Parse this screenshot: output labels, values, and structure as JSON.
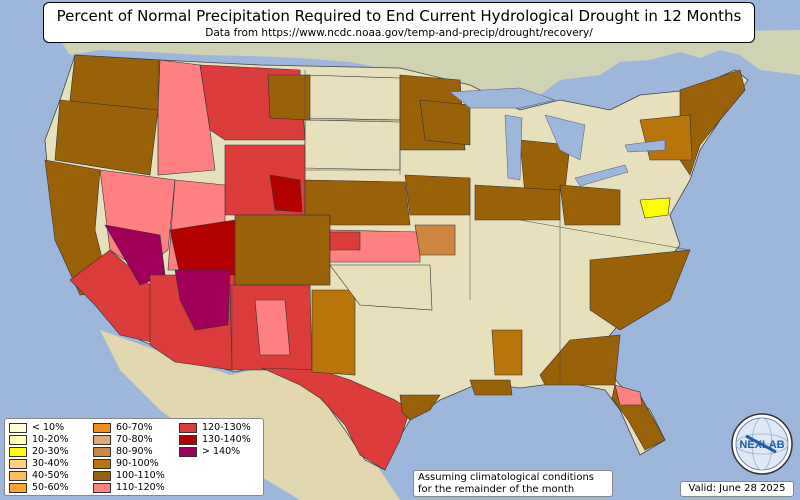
{
  "title": "Percent of Normal Precipitation Required to End Current Hydrological Drought in 12 Months",
  "subtitle": "Data from https://www.ncdc.noaa.gov/temp-and-precip/drought/recovery/",
  "legend": {
    "items": [
      {
        "label": "< 10%",
        "color": "#ffffd9"
      },
      {
        "label": "10-20%",
        "color": "#ffffb2"
      },
      {
        "label": "20-30%",
        "color": "#ffff00"
      },
      {
        "label": "30-40%",
        "color": "#fed27a"
      },
      {
        "label": "40-50%",
        "color": "#ffbf60"
      },
      {
        "label": "50-60%",
        "color": "#f9a232"
      },
      {
        "label": "60-70%",
        "color": "#f28c1e"
      },
      {
        "label": "70-80%",
        "color": "#e0a876"
      },
      {
        "label": "80-90%",
        "color": "#cd853f"
      },
      {
        "label": "90-100%",
        "color": "#b8760a"
      },
      {
        "label": "100-110%",
        "color": "#9a6208"
      },
      {
        "label": "110-120%",
        "color": "#ff8080"
      },
      {
        "label": "120-130%",
        "color": "#dc3c3c"
      },
      {
        "label": "130-140%",
        "color": "#b30000"
      },
      {
        "label": "> 140%",
        "color": "#a0005a"
      }
    ]
  },
  "note": {
    "line1": "Assuming climatological conditions",
    "line2": "for the remainder of the month"
  },
  "valid": "Valid: June 28 2025",
  "logo": {
    "text": "NEXLAB",
    "icon": "nexlab-globe-logo"
  },
  "colors": {
    "ocean": "#9db6dc",
    "land": "#e6e0bd",
    "border": "#333333"
  }
}
